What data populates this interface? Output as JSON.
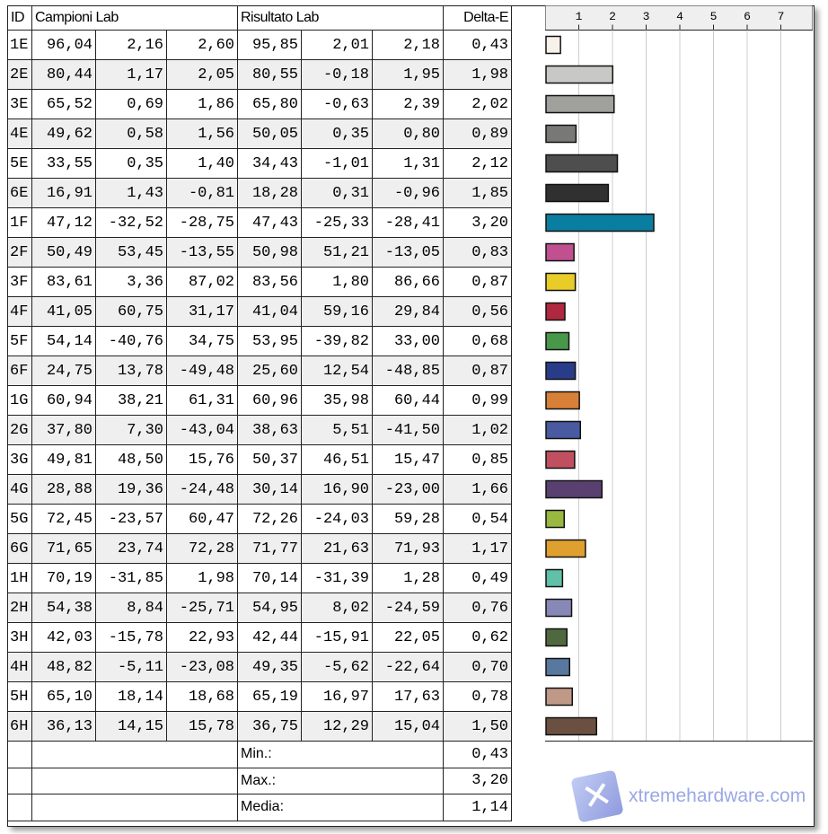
{
  "headers": {
    "id": "ID",
    "campioni": "Campioni Lab",
    "risultato": "Risultato Lab",
    "delta": "Delta-E"
  },
  "rows": [
    {
      "id": "1E",
      "c": [
        "96,04",
        "2,16",
        "2,60"
      ],
      "r": [
        "95,85",
        "2,01",
        "2,18"
      ],
      "de": "0,43",
      "v": 0.43,
      "color": "#f7f1ea"
    },
    {
      "id": "2E",
      "c": [
        "80,44",
        "1,17",
        "2,05"
      ],
      "r": [
        "80,55",
        "-0,18",
        "1,95"
      ],
      "de": "1,98",
      "v": 1.98,
      "color": "#c8c8c4"
    },
    {
      "id": "3E",
      "c": [
        "65,52",
        "0,69",
        "1,86"
      ],
      "r": [
        "65,80",
        "-0,63",
        "2,39"
      ],
      "de": "2,02",
      "v": 2.02,
      "color": "#a0a09c"
    },
    {
      "id": "4E",
      "c": [
        "49,62",
        "0,58",
        "1,56"
      ],
      "r": [
        "50,05",
        "0,35",
        "0,80"
      ],
      "de": "0,89",
      "v": 0.89,
      "color": "#787876"
    },
    {
      "id": "5E",
      "c": [
        "33,55",
        "0,35",
        "1,40"
      ],
      "r": [
        "34,43",
        "-1,01",
        "1,31"
      ],
      "de": "2,12",
      "v": 2.12,
      "color": "#4e4e4e"
    },
    {
      "id": "6E",
      "c": [
        "16,91",
        "1,43",
        "-0,81"
      ],
      "r": [
        "18,28",
        "0,31",
        "-0,96"
      ],
      "de": "1,85",
      "v": 1.85,
      "color": "#303030"
    },
    {
      "id": "1F",
      "c": [
        "47,12",
        "-32,52",
        "-28,75"
      ],
      "r": [
        "47,43",
        "-25,33",
        "-28,41"
      ],
      "de": "3,20",
      "v": 3.2,
      "color": "#0a7ea0"
    },
    {
      "id": "2F",
      "c": [
        "50,49",
        "53,45",
        "-13,55"
      ],
      "r": [
        "50,98",
        "51,21",
        "-13,05"
      ],
      "de": "0,83",
      "v": 0.83,
      "color": "#c05090"
    },
    {
      "id": "3F",
      "c": [
        "83,61",
        "3,36",
        "87,02"
      ],
      "r": [
        "83,56",
        "1,80",
        "86,66"
      ],
      "de": "0,87",
      "v": 0.87,
      "color": "#e8cc28"
    },
    {
      "id": "4F",
      "c": [
        "41,05",
        "60,75",
        "31,17"
      ],
      "r": [
        "41,04",
        "59,16",
        "29,84"
      ],
      "de": "0,56",
      "v": 0.56,
      "color": "#b02840"
    },
    {
      "id": "5F",
      "c": [
        "54,14",
        "-40,76",
        "34,75"
      ],
      "r": [
        "53,95",
        "-39,82",
        "33,00"
      ],
      "de": "0,68",
      "v": 0.68,
      "color": "#48984a"
    },
    {
      "id": "6F",
      "c": [
        "24,75",
        "13,78",
        "-49,48"
      ],
      "r": [
        "25,60",
        "12,54",
        "-48,85"
      ],
      "de": "0,87",
      "v": 0.87,
      "color": "#283c8a"
    },
    {
      "id": "1G",
      "c": [
        "60,94",
        "38,21",
        "61,31"
      ],
      "r": [
        "60,96",
        "35,98",
        "60,44"
      ],
      "de": "0,99",
      "v": 0.99,
      "color": "#d88038"
    },
    {
      "id": "2G",
      "c": [
        "37,80",
        "7,30",
        "-43,04"
      ],
      "r": [
        "38,63",
        "5,51",
        "-41,50"
      ],
      "de": "1,02",
      "v": 1.02,
      "color": "#4a5aa0"
    },
    {
      "id": "3G",
      "c": [
        "49,81",
        "48,50",
        "15,76"
      ],
      "r": [
        "50,37",
        "46,51",
        "15,47"
      ],
      "de": "0,85",
      "v": 0.85,
      "color": "#c05060"
    },
    {
      "id": "4G",
      "c": [
        "28,88",
        "19,36",
        "-24,48"
      ],
      "r": [
        "30,14",
        "16,90",
        "-23,00"
      ],
      "de": "1,66",
      "v": 1.66,
      "color": "#5a4070"
    },
    {
      "id": "5G",
      "c": [
        "72,45",
        "-23,57",
        "60,47"
      ],
      "r": [
        "72,26",
        "-24,03",
        "59,28"
      ],
      "de": "0,54",
      "v": 0.54,
      "color": "#98b840"
    },
    {
      "id": "6G",
      "c": [
        "71,65",
        "23,74",
        "72,28"
      ],
      "r": [
        "71,77",
        "21,63",
        "71,93"
      ],
      "de": "1,17",
      "v": 1.17,
      "color": "#e0a030"
    },
    {
      "id": "1H",
      "c": [
        "70,19",
        "-31,85",
        "1,98"
      ],
      "r": [
        "70,14",
        "-31,39",
        "1,28"
      ],
      "de": "0,49",
      "v": 0.49,
      "color": "#60c0a8"
    },
    {
      "id": "2H",
      "c": [
        "54,38",
        "8,84",
        "-25,71"
      ],
      "r": [
        "54,95",
        "8,02",
        "-24,59"
      ],
      "de": "0,76",
      "v": 0.76,
      "color": "#8888b8"
    },
    {
      "id": "3H",
      "c": [
        "42,03",
        "-15,78",
        "22,93"
      ],
      "r": [
        "42,44",
        "-15,91",
        "22,05"
      ],
      "de": "0,62",
      "v": 0.62,
      "color": "#506840"
    },
    {
      "id": "4H",
      "c": [
        "48,82",
        "-5,11",
        "-23,08"
      ],
      "r": [
        "49,35",
        "-5,62",
        "-22,64"
      ],
      "de": "0,70",
      "v": 0.7,
      "color": "#5878a0"
    },
    {
      "id": "5H",
      "c": [
        "65,10",
        "18,14",
        "18,68"
      ],
      "r": [
        "65,19",
        "16,97",
        "17,63"
      ],
      "de": "0,78",
      "v": 0.78,
      "color": "#c09888"
    },
    {
      "id": "6H",
      "c": [
        "36,13",
        "14,15",
        "15,78"
      ],
      "r": [
        "36,75",
        "12,29",
        "15,04"
      ],
      "de": "1,50",
      "v": 1.5,
      "color": "#6a5040"
    }
  ],
  "summary": [
    {
      "label": "Min.:",
      "value": "0,43"
    },
    {
      "label": "Max.:",
      "value": "3,20"
    },
    {
      "label": "Media:",
      "value": "1,14"
    }
  ],
  "chart_data": {
    "type": "bar",
    "orientation": "horizontal",
    "ticks": [
      "1",
      "2",
      "3",
      "4",
      "5",
      "6",
      "7"
    ],
    "xlim": [
      0,
      7.8
    ],
    "grid": true
  },
  "watermark": "xtremehardware.com"
}
